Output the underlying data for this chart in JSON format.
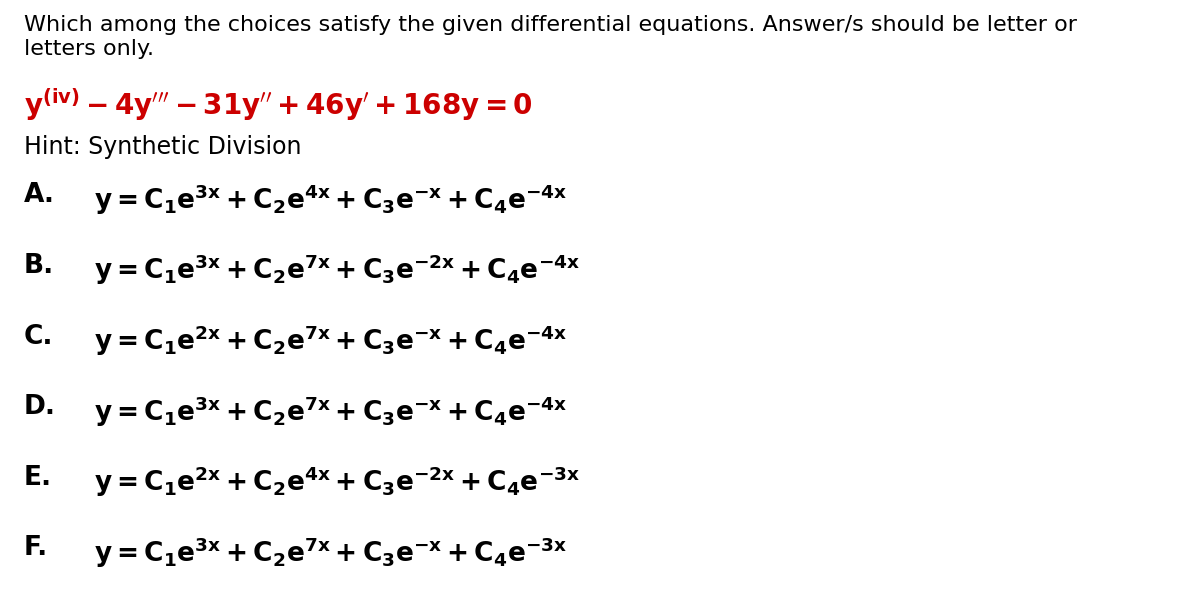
{
  "background_color": "#ffffff",
  "header_line1": "Which among the choices satisfy the given differential equations. Answer/s should be letter or",
  "header_line2": "letters only.",
  "header_fontsize": 16,
  "header_color": "#000000",
  "equation_color": "#cc0000",
  "equation_fontsize": 20,
  "hint_text": "Hint: Synthetic Division",
  "hint_fontsize": 17,
  "hint_color": "#000000",
  "choice_fontsize": 19,
  "choice_color": "#000000",
  "labels": [
    "A.",
    "B.",
    "C.",
    "D.",
    "E.",
    "F."
  ]
}
